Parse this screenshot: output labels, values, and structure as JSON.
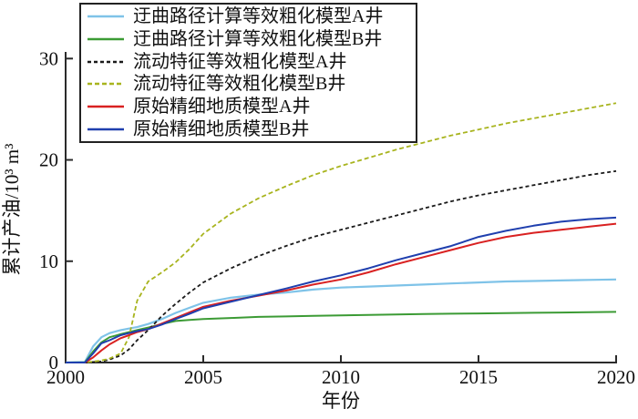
{
  "figure": {
    "background": "#ffffff",
    "axis_color": "#2b2b2b",
    "text_color": "#111111"
  },
  "chart_data": {
    "type": "line",
    "title": "",
    "xlabel": "年份",
    "ylabel": "累计产油/10³ m³",
    "xlim": [
      2000,
      2020
    ],
    "ylim": [
      0,
      30
    ],
    "x_ticks": [
      "2000",
      "2005",
      "2010",
      "2015",
      "2020"
    ],
    "x_tick_values": [
      2000,
      2005,
      2010,
      2015,
      2020
    ],
    "y_ticks": [
      "0",
      "10",
      "20",
      "30"
    ],
    "y_tick_values": [
      0,
      10,
      20,
      30
    ],
    "grid": false,
    "legend_position": "upper-left",
    "x": [
      2000,
      2000.7,
      2001,
      2001.3,
      2001.6,
      2002,
      2002.3,
      2002.6,
      2003,
      2003.5,
      2004,
      2004.5,
      2005,
      2006,
      2007,
      2008,
      2009,
      2010,
      2011,
      2012,
      2013,
      2014,
      2015,
      2016,
      2017,
      2018,
      2019,
      2020
    ],
    "series": [
      {
        "name": "迂曲路径计算等效粗化模型A井",
        "color": "#7fc3e8",
        "style": "solid",
        "dash": "",
        "width": 2.2,
        "values": [
          0,
          0.05,
          1.6,
          2.5,
          2.9,
          3.2,
          3.35,
          3.5,
          3.8,
          4.3,
          4.9,
          5.4,
          5.9,
          6.4,
          6.7,
          6.9,
          7.2,
          7.4,
          7.5,
          7.6,
          7.7,
          7.8,
          7.9,
          8.0,
          8.05,
          8.1,
          8.15,
          8.2
        ]
      },
      {
        "name": "迂曲路径计算等效粗化模型B井",
        "color": "#3c9b35",
        "style": "solid",
        "dash": "",
        "width": 2,
        "values": [
          0,
          0.02,
          1.1,
          2.0,
          2.5,
          2.8,
          3.0,
          3.2,
          3.45,
          3.8,
          4.1,
          4.2,
          4.3,
          4.4,
          4.5,
          4.55,
          4.6,
          4.65,
          4.7,
          4.74,
          4.78,
          4.82,
          4.85,
          4.88,
          4.91,
          4.94,
          4.97,
          5.0
        ]
      },
      {
        "name": "流动特征等效粗化模型A井",
        "color": "#1a1a1a",
        "style": "dashed",
        "dash": "4 3",
        "width": 1.8,
        "values": [
          0,
          0,
          0.05,
          0.1,
          0.3,
          0.7,
          1.3,
          2.2,
          3.2,
          4.6,
          5.8,
          6.9,
          7.9,
          9.3,
          10.5,
          11.5,
          12.4,
          13.1,
          13.8,
          14.5,
          15.2,
          15.9,
          16.5,
          17.0,
          17.5,
          18.0,
          18.5,
          18.9
        ]
      },
      {
        "name": "流动特征等效粗化模型B井",
        "color": "#a8b41e",
        "style": "dashed",
        "dash": "5 3",
        "width": 1.8,
        "values": [
          0,
          0,
          0.1,
          0.2,
          0.4,
          0.9,
          2.5,
          6.1,
          8.0,
          8.9,
          9.9,
          11.2,
          12.7,
          14.7,
          16.2,
          17.4,
          18.5,
          19.4,
          20.2,
          21.0,
          21.7,
          22.4,
          23.0,
          23.6,
          24.1,
          24.6,
          25.1,
          25.6
        ]
      },
      {
        "name": "原始精细地质模型A井",
        "color": "#d92121",
        "style": "solid",
        "dash": "",
        "width": 2,
        "values": [
          0,
          0,
          0.5,
          1.2,
          1.8,
          2.4,
          2.7,
          3.0,
          3.3,
          3.85,
          4.4,
          4.95,
          5.5,
          6.1,
          6.6,
          7.1,
          7.7,
          8.2,
          8.9,
          9.7,
          10.4,
          11.1,
          11.8,
          12.4,
          12.8,
          13.1,
          13.4,
          13.7
        ]
      },
      {
        "name": "原始精细地质模型B井",
        "color": "#1f3fae",
        "style": "solid",
        "dash": "",
        "width": 2,
        "values": [
          0,
          0,
          0.9,
          1.9,
          2.2,
          2.7,
          2.9,
          3.1,
          3.3,
          3.75,
          4.3,
          4.8,
          5.35,
          6.0,
          6.65,
          7.3,
          8.0,
          8.6,
          9.3,
          10.1,
          10.8,
          11.5,
          12.4,
          13.0,
          13.5,
          13.9,
          14.15,
          14.3
        ]
      }
    ]
  }
}
